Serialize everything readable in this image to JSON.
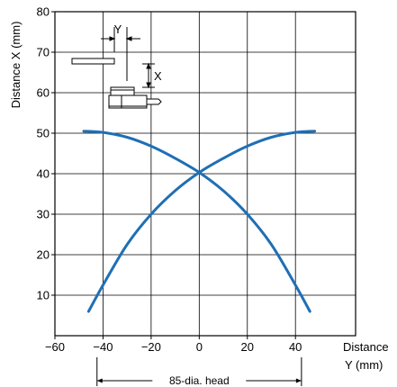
{
  "chart_data": {
    "type": "line",
    "xlabel": [
      "Distance",
      "Y (mm)"
    ],
    "ylabel": "Distance X (mm)",
    "xlim": [
      -60,
      65
    ],
    "ylim": [
      0,
      80
    ],
    "x_ticks": [
      -60,
      -40,
      -20,
      0,
      20,
      40
    ],
    "x_tick_labels": [
      "−60",
      "−40",
      "−20",
      "0",
      "20",
      "40"
    ],
    "y_ticks": [
      10,
      20,
      30,
      40,
      50,
      60,
      70,
      80
    ],
    "y_tick_labels": [
      "10",
      "20",
      "30",
      "40",
      "50",
      "60",
      "70",
      "80"
    ],
    "grid": true,
    "line_color": "#1f6fb5",
    "series": [
      {
        "x": [
          -48,
          -40,
          -30,
          -20,
          -10,
          0,
          10,
          20,
          30,
          40,
          46
        ],
        "y": [
          50.5,
          50.2,
          49.0,
          46.8,
          43.8,
          40.3,
          35.8,
          30.0,
          22.5,
          12.5,
          6.0
        ]
      },
      {
        "x": [
          -46,
          -40,
          -30,
          -20,
          -10,
          0,
          10,
          20,
          30,
          40,
          48
        ],
        "y": [
          6.0,
          12.5,
          22.5,
          30.0,
          35.8,
          40.3,
          43.8,
          46.8,
          49.0,
          50.2,
          50.5
        ]
      }
    ],
    "annotations": {
      "head_label": "85-dia. head",
      "head_range": [
        -42.5,
        42.5
      ],
      "inset_y_label": "Y",
      "inset_x_label": "X"
    }
  }
}
